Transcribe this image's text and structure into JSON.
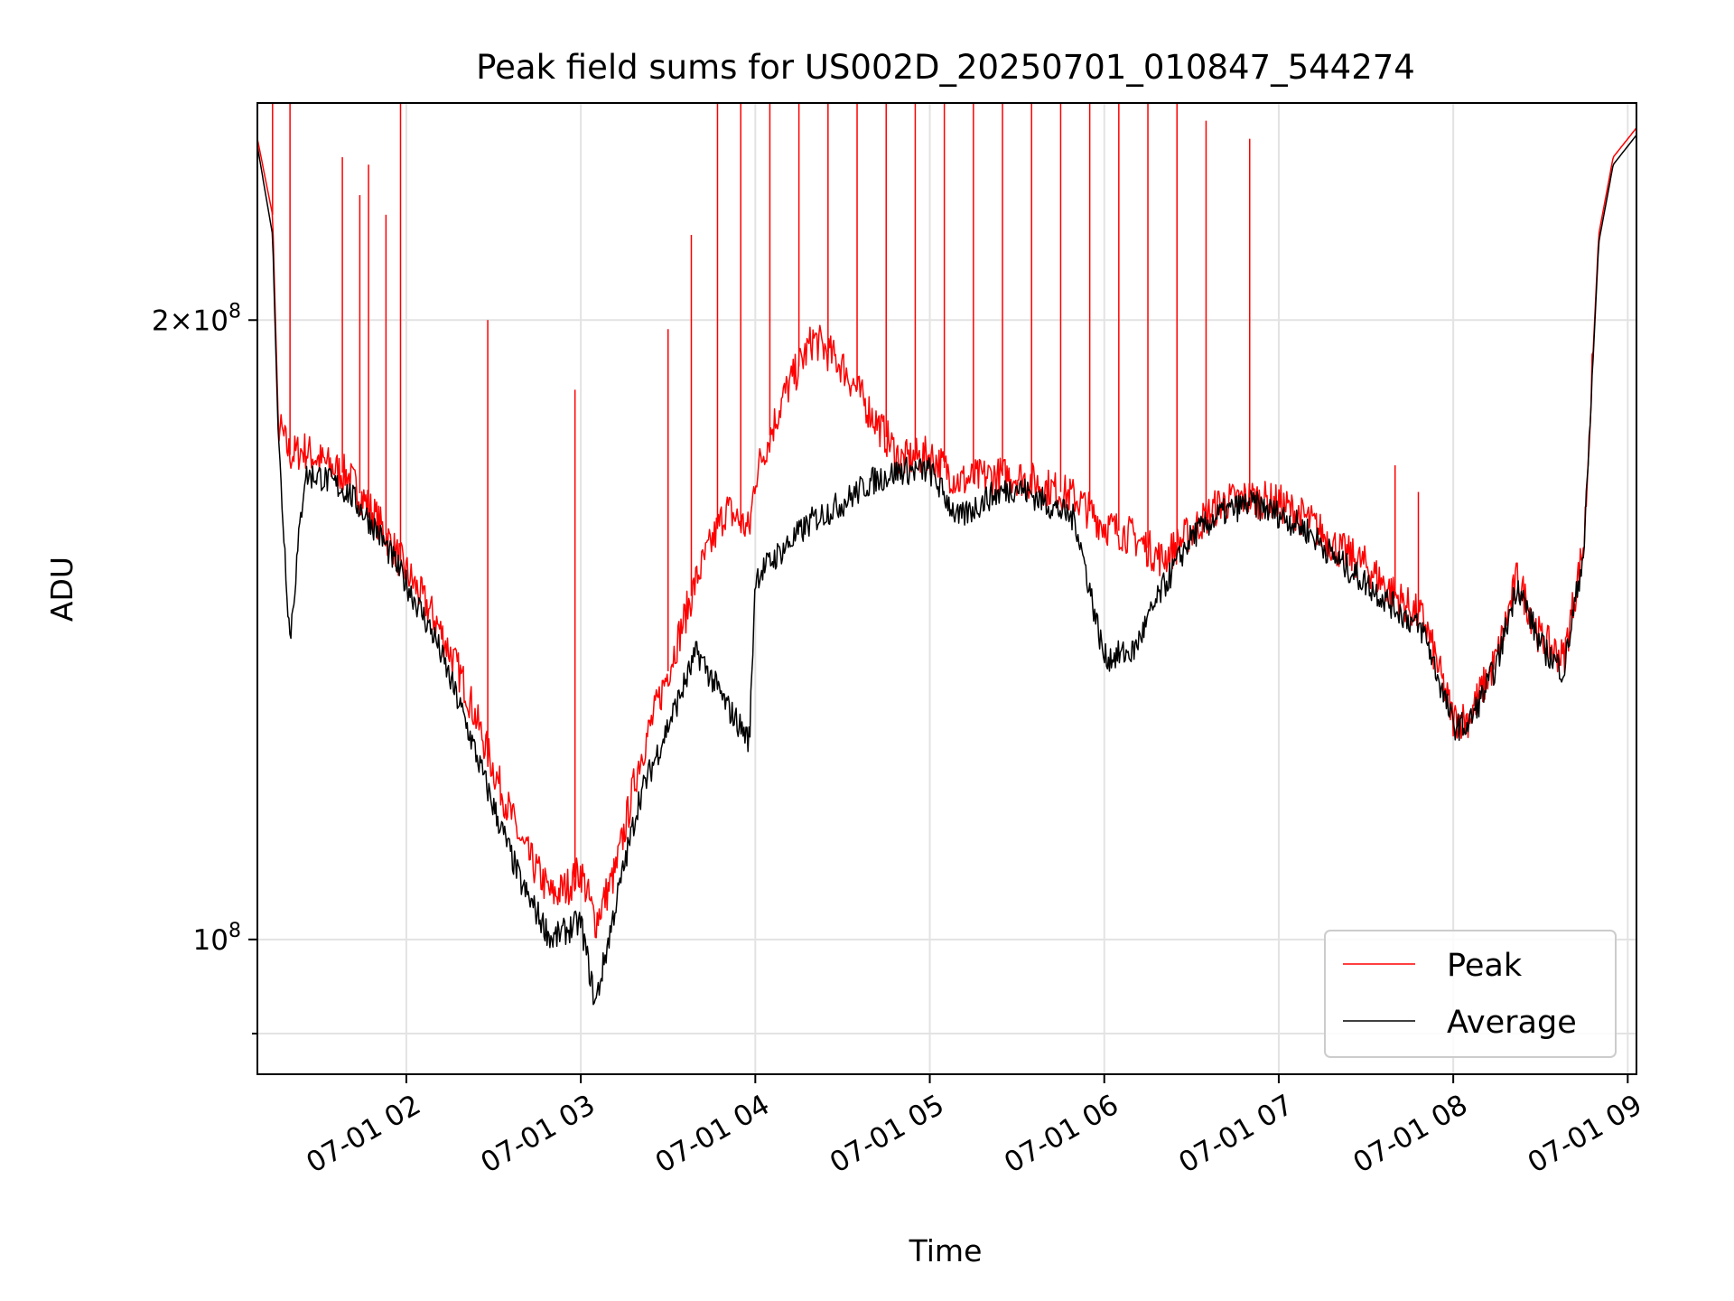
{
  "chart_data": {
    "type": "line",
    "title": "Peak field sums for US002D_20250701_010847_544274",
    "xlabel": "Time",
    "ylabel": "ADU",
    "x_ticks": [
      "07-01 02",
      "07-01 03",
      "07-01 04",
      "07-01 05",
      "07-01 06",
      "07-01 07",
      "07-01 08",
      "07-01 09"
    ],
    "y_ticks": [
      {
        "value": 100000000,
        "label": "10^8"
      },
      {
        "value": 200000000,
        "label": "2×10^8"
      }
    ],
    "y_scale": "log",
    "xlim": [
      "2025-07-01 01:08:47",
      "2025-07-01 09:03:00"
    ],
    "ylim": [
      86000000,
      255000000
    ],
    "grid": true,
    "legend_position": "lower-right",
    "x": [
      "2025-07-01 01:08:47",
      "2025-07-01 01:14",
      "2025-07-01 01:16",
      "2025-07-01 01:20",
      "2025-07-01 01:25",
      "2025-07-01 01:30",
      "2025-07-01 01:40",
      "2025-07-01 01:50",
      "2025-07-01 02:00",
      "2025-07-01 02:10",
      "2025-07-01 02:20",
      "2025-07-01 02:30",
      "2025-07-01 02:40",
      "2025-07-01 02:50",
      "2025-07-01 02:55",
      "2025-07-01 03:00",
      "2025-07-01 03:05",
      "2025-07-01 03:12",
      "2025-07-01 03:20",
      "2025-07-01 03:30",
      "2025-07-01 03:40",
      "2025-07-01 03:50",
      "2025-07-01 03:58",
      "2025-07-01 04:00",
      "2025-07-01 04:10",
      "2025-07-01 04:20",
      "2025-07-01 04:30",
      "2025-07-01 04:40",
      "2025-07-01 04:50",
      "2025-07-01 05:00",
      "2025-07-01 05:10",
      "2025-07-01 05:20",
      "2025-07-01 05:30",
      "2025-07-01 05:40",
      "2025-07-01 05:50",
      "2025-07-01 06:00",
      "2025-07-01 06:10",
      "2025-07-01 06:20",
      "2025-07-01 06:30",
      "2025-07-01 06:40",
      "2025-07-01 06:50",
      "2025-07-01 07:00",
      "2025-07-01 07:10",
      "2025-07-01 07:20",
      "2025-07-01 07:30",
      "2025-07-01 07:40",
      "2025-07-01 07:50",
      "2025-07-01 08:00",
      "2025-07-01 08:05",
      "2025-07-01 08:15",
      "2025-07-01 08:22",
      "2025-07-01 08:30",
      "2025-07-01 08:38",
      "2025-07-01 08:45",
      "2025-07-01 08:50",
      "2025-07-01 08:55",
      "2025-07-01 09:03"
    ],
    "series": [
      {
        "name": "Peak",
        "color": "#ff0000",
        "values": [
          245000000,
          225000000,
          178000000,
          172000000,
          173000000,
          171000000,
          168000000,
          160000000,
          151000000,
          143000000,
          133000000,
          121000000,
          111000000,
          105000000,
          106000000,
          108000000,
          102000000,
          108000000,
          122000000,
          135000000,
          150000000,
          162000000,
          158000000,
          168000000,
          184000000,
          196000000,
          190000000,
          180000000,
          171000000,
          172000000,
          167000000,
          168000000,
          168000000,
          166000000,
          164000000,
          159000000,
          157000000,
          153000000,
          158000000,
          163000000,
          164000000,
          163000000,
          160000000,
          155000000,
          152000000,
          147000000,
          143000000,
          128000000,
          128000000,
          137000000,
          150000000,
          140000000,
          137000000,
          156000000,
          220000000,
          240000000,
          248000000
        ]
      },
      {
        "name": "Average",
        "color": "#000000",
        "values": [
          243000000,
          220000000,
          175000000,
          140000000,
          168000000,
          168000000,
          165000000,
          158000000,
          149000000,
          140000000,
          128000000,
          116000000,
          106000000,
          100000000,
          101000000,
          102000000,
          93000000,
          104000000,
          117000000,
          127000000,
          138000000,
          130000000,
          125000000,
          150000000,
          155000000,
          160000000,
          163000000,
          167000000,
          169000000,
          169000000,
          160000000,
          164000000,
          166000000,
          163000000,
          160000000,
          137000000,
          138000000,
          148000000,
          157000000,
          161000000,
          163000000,
          161000000,
          158000000,
          153000000,
          149000000,
          145000000,
          141000000,
          127000000,
          127000000,
          136000000,
          149000000,
          139000000,
          135000000,
          155000000,
          218000000,
          238000000,
          246000000
        ]
      }
    ],
    "peak_spikes": [
      {
        "x": "2025-07-01 01:14",
        "y": 255000000
      },
      {
        "x": "2025-07-01 01:20",
        "y": 255000000
      },
      {
        "x": "2025-07-01 01:38",
        "y": 240000000
      },
      {
        "x": "2025-07-01 01:44",
        "y": 230000000
      },
      {
        "x": "2025-07-01 01:47",
        "y": 238000000
      },
      {
        "x": "2025-07-01 01:53",
        "y": 225000000
      },
      {
        "x": "2025-07-01 01:58",
        "y": 255000000
      },
      {
        "x": "2025-07-01 02:28",
        "y": 200000000
      },
      {
        "x": "2025-07-01 02:58",
        "y": 185000000
      },
      {
        "x": "2025-07-01 03:30",
        "y": 198000000
      },
      {
        "x": "2025-07-01 03:38",
        "y": 220000000
      },
      {
        "x": "2025-07-01 03:47",
        "y": 255000000
      },
      {
        "x": "2025-07-01 03:55",
        "y": 255000000
      },
      {
        "x": "2025-07-01 04:05",
        "y": 255000000
      },
      {
        "x": "2025-07-01 04:15",
        "y": 255000000
      },
      {
        "x": "2025-07-01 04:25",
        "y": 255000000
      },
      {
        "x": "2025-07-01 04:35",
        "y": 255000000
      },
      {
        "x": "2025-07-01 04:45",
        "y": 255000000
      },
      {
        "x": "2025-07-01 04:55",
        "y": 255000000
      },
      {
        "x": "2025-07-01 05:05",
        "y": 255000000
      },
      {
        "x": "2025-07-01 05:15",
        "y": 255000000
      },
      {
        "x": "2025-07-01 05:25",
        "y": 255000000
      },
      {
        "x": "2025-07-01 05:35",
        "y": 255000000
      },
      {
        "x": "2025-07-01 05:45",
        "y": 255000000
      },
      {
        "x": "2025-07-01 05:55",
        "y": 255000000
      },
      {
        "x": "2025-07-01 06:05",
        "y": 255000000
      },
      {
        "x": "2025-07-01 06:15",
        "y": 255000000
      },
      {
        "x": "2025-07-01 06:25",
        "y": 255000000
      },
      {
        "x": "2025-07-01 06:35",
        "y": 250000000
      },
      {
        "x": "2025-07-01 06:50",
        "y": 245000000
      },
      {
        "x": "2025-07-01 07:40",
        "y": 170000000
      },
      {
        "x": "2025-07-01 07:48",
        "y": 165000000
      }
    ]
  },
  "legend": {
    "peak_label": "Peak",
    "average_label": "Average"
  }
}
